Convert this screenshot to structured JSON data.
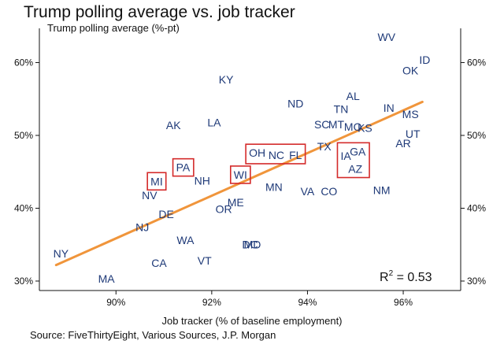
{
  "chart_data": {
    "type": "scatter",
    "title": "Trump polling average vs. job tracker",
    "ylabel": "Trump polling average (%-pt)",
    "xlabel": "Job tracker (% of baseline employment)",
    "source": "Source: FiveThirtyEight, Various Sources, J.P. Morgan",
    "xlim": [
      88.4,
      97.2
    ],
    "ylim": [
      28.7,
      64.7
    ],
    "x_ticks": [
      {
        "value": 90,
        "label": "90%"
      },
      {
        "value": 92,
        "label": "92%"
      },
      {
        "value": 94,
        "label": "94%"
      },
      {
        "value": 96,
        "label": "96%"
      }
    ],
    "y_ticks": [
      {
        "value": 30,
        "label": "30%"
      },
      {
        "value": 40,
        "label": "40%"
      },
      {
        "value": 50,
        "label": "50%"
      },
      {
        "value": 60,
        "label": "60%"
      }
    ],
    "points": [
      {
        "label": "WV",
        "x": 95.65,
        "y": 63.5
      },
      {
        "label": "ID",
        "x": 96.45,
        "y": 60.4
      },
      {
        "label": "OK",
        "x": 96.15,
        "y": 58.9
      },
      {
        "label": "KY",
        "x": 92.3,
        "y": 57.7
      },
      {
        "label": "ND",
        "x": 93.75,
        "y": 54.4
      },
      {
        "label": "AL",
        "x": 94.95,
        "y": 55.4
      },
      {
        "label": "TN",
        "x": 94.7,
        "y": 53.6
      },
      {
        "label": "IN",
        "x": 95.7,
        "y": 53.8
      },
      {
        "label": "MS",
        "x": 96.15,
        "y": 52.9
      },
      {
        "label": "AK",
        "x": 91.2,
        "y": 51.4
      },
      {
        "label": "LA",
        "x": 92.05,
        "y": 51.8
      },
      {
        "label": "SC",
        "x": 94.3,
        "y": 51.5
      },
      {
        "label": "MT",
        "x": 94.6,
        "y": 51.5
      },
      {
        "label": "MO",
        "x": 94.95,
        "y": 51.2
      },
      {
        "label": "KS",
        "x": 95.2,
        "y": 51.0
      },
      {
        "label": "UT",
        "x": 96.2,
        "y": 50.2
      },
      {
        "label": "AR",
        "x": 96.0,
        "y": 48.9
      },
      {
        "label": "TX",
        "x": 94.35,
        "y": 48.5
      },
      {
        "label": "OH",
        "x": 92.95,
        "y": 47.6
      },
      {
        "label": "NC",
        "x": 93.35,
        "y": 47.3
      },
      {
        "label": "FL",
        "x": 93.75,
        "y": 47.3
      },
      {
        "label": "IA",
        "x": 94.8,
        "y": 47.2
      },
      {
        "label": "GA",
        "x": 95.05,
        "y": 47.8
      },
      {
        "label": "AZ",
        "x": 95.0,
        "y": 45.4
      },
      {
        "label": "PA",
        "x": 91.4,
        "y": 45.6
      },
      {
        "label": "WI",
        "x": 92.6,
        "y": 44.6
      },
      {
        "label": "MI",
        "x": 90.85,
        "y": 43.7
      },
      {
        "label": "NH",
        "x": 91.8,
        "y": 43.8
      },
      {
        "label": "MN",
        "x": 93.3,
        "y": 42.9
      },
      {
        "label": "NV",
        "x": 90.7,
        "y": 41.8
      },
      {
        "label": "VA",
        "x": 94.0,
        "y": 42.3
      },
      {
        "label": "CO",
        "x": 94.45,
        "y": 42.3
      },
      {
        "label": "NM",
        "x": 95.55,
        "y": 42.5
      },
      {
        "label": "ME",
        "x": 92.5,
        "y": 40.8
      },
      {
        "label": "OR",
        "x": 92.25,
        "y": 39.9
      },
      {
        "label": "DE",
        "x": 91.05,
        "y": 39.2
      },
      {
        "label": "NJ",
        "x": 90.55,
        "y": 37.4
      },
      {
        "label": "WA",
        "x": 91.45,
        "y": 35.6
      },
      {
        "label": "DC",
        "x": 92.8,
        "y": 35.0
      },
      {
        "label": "MD",
        "x": 92.85,
        "y": 35.0
      },
      {
        "label": "NY",
        "x": 88.85,
        "y": 33.8
      },
      {
        "label": "VT",
        "x": 91.85,
        "y": 32.8
      },
      {
        "label": "CA",
        "x": 90.9,
        "y": 32.5
      },
      {
        "label": "MA",
        "x": 89.8,
        "y": 30.3
      }
    ],
    "trendline": {
      "x": [
        88.75,
        96.4
      ],
      "y": [
        32.2,
        54.6
      ]
    },
    "highlighted_boxes": [
      {
        "states": [
          "MI"
        ]
      },
      {
        "states": [
          "PA"
        ]
      },
      {
        "states": [
          "WI"
        ]
      },
      {
        "states": [
          "OH",
          "NC",
          "FL"
        ]
      },
      {
        "states": [
          "IA",
          "GA",
          "AZ"
        ]
      }
    ],
    "annotation": {
      "r2_base": "R",
      "r2_exp": "2",
      "r2_rest": " = 0.53"
    },
    "colors": {
      "points": "#1f3a78",
      "trendline": "#f0953b",
      "highlight": "#d42a2a",
      "axis": "#111111"
    }
  }
}
